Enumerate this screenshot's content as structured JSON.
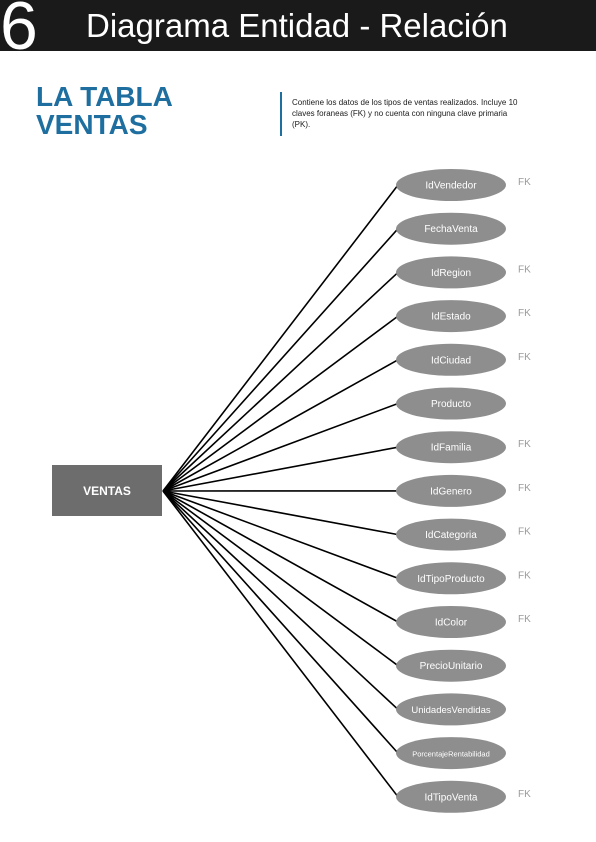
{
  "header": {
    "number": "6",
    "title": "Diagrama Entidad - Relación"
  },
  "section": {
    "title_line1": "LA TABLA",
    "title_line2": "VENTAS",
    "description": "Contiene los datos de los tipos de ventas realizados. Incluye 10 claves foraneas (FK) y no cuenta con ninguna clave primaria (PK)."
  },
  "colors": {
    "header_bg": "#1a1a1a",
    "accent_blue": "#1e6fa0",
    "entity_fill": "#6d6d6d",
    "attribute_fill": "#8e8e8e",
    "fk_text": "#9a9a9a"
  },
  "entity": {
    "label": "VENTAS"
  },
  "attributes": [
    {
      "label": "IdVendedor",
      "key": "FK"
    },
    {
      "label": "FechaVenta",
      "key": ""
    },
    {
      "label": "IdRegion",
      "key": "FK"
    },
    {
      "label": "IdEstado",
      "key": "FK"
    },
    {
      "label": "IdCiudad",
      "key": "FK"
    },
    {
      "label": "Producto",
      "key": ""
    },
    {
      "label": "IdFamilia",
      "key": "FK"
    },
    {
      "label": "IdGenero",
      "key": "FK"
    },
    {
      "label": "IdCategoria",
      "key": "FK"
    },
    {
      "label": "IdTipoProducto",
      "key": "FK"
    },
    {
      "label": "IdColor",
      "key": "FK"
    },
    {
      "label": "PrecioUnitario",
      "key": ""
    },
    {
      "label": "UnidadesVendidas",
      "key": ""
    },
    {
      "label": "PorcentajeRentabilidad",
      "key": ""
    },
    {
      "label": "IdTipoVenta",
      "key": "FK"
    }
  ]
}
